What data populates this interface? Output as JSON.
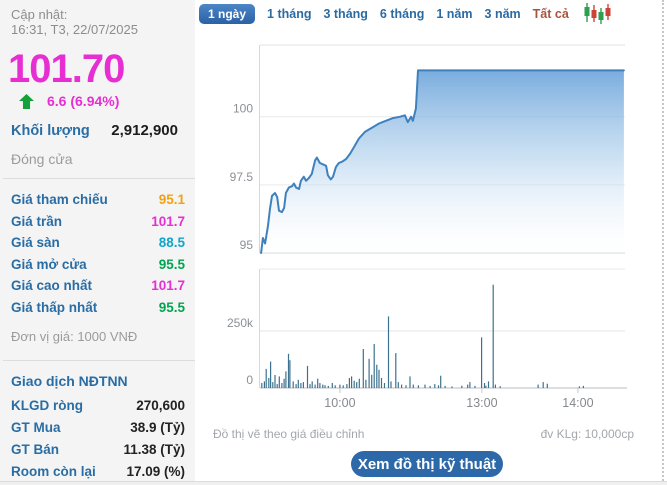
{
  "left_panel": {
    "updated_label": "Cập nhật:",
    "updated_time": "16:31, T3, 22/07/2025",
    "price": "101.70",
    "price_color": "#e62ed3",
    "change": "6.6 (6.94%)",
    "change_direction": "up",
    "volume_label": "Khối lượng",
    "volume_value": "2,912,900",
    "session_status": "Đóng cửa",
    "rows": [
      {
        "label": "Giá tham chiếu",
        "value": "95.1",
        "color": "#f2a10f"
      },
      {
        "label": "Giá trần",
        "value": "101.7",
        "color": "#e62ed3"
      },
      {
        "label": "Giá sàn",
        "value": "88.5",
        "color": "#12a5c9"
      },
      {
        "label": "Giá mở cửa",
        "value": "95.5",
        "color": "#00a550"
      },
      {
        "label": "Giá cao nhất",
        "value": "101.7",
        "color": "#e62ed3"
      },
      {
        "label": "Giá thấp nhất",
        "value": "95.5",
        "color": "#00a550"
      }
    ],
    "unit_note": "Đơn vị giá: 1000 VNĐ",
    "foreign": {
      "title": "Giao dịch NĐTNN",
      "rows": [
        {
          "label": "KLGD ròng",
          "value": "270,600"
        },
        {
          "label": "GT Mua",
          "value": "38.9 (Tỷ)"
        },
        {
          "label": "GT Bán",
          "value": "11.38 (Tỷ)"
        },
        {
          "label": "Room còn lại",
          "value": "17.09 (%)"
        }
      ]
    }
  },
  "tabs": [
    {
      "label": "1 ngày",
      "active": true
    },
    {
      "label": "1 tháng",
      "active": false
    },
    {
      "label": "3 tháng",
      "active": false
    },
    {
      "label": "6 tháng",
      "active": false
    },
    {
      "label": "1 năm",
      "active": false
    },
    {
      "label": "3 năm",
      "active": false
    },
    {
      "label": "Tất cả",
      "active": false,
      "color": "#a8533e"
    }
  ],
  "icons": {
    "trend": "up-arrow-icon",
    "chart_style_switcher": "candlestick-icon"
  },
  "footer": {
    "note": "Đồ thị vẽ theo giá điều chỉnh",
    "volume_unit": "đv KLg: 10,000cp",
    "button_label": "Xem đồ thị kỹ thuật"
  },
  "colors": {
    "accent_blue": "#2a6da4",
    "up_green": "#14a03a",
    "ceiling_magenta": "#e62ed3",
    "floor_teal": "#12a5c9",
    "reference_orange": "#f2a10f",
    "button_blue": "#2d68a8"
  },
  "chart_data": [
    {
      "type": "area",
      "series_name": "price",
      "ylabel_unit": "1000 VND",
      "ylim": [
        95,
        102.63
      ],
      "yticks": [
        95,
        97.5,
        100
      ],
      "x_ticks": [
        {
          "pos": 0.219,
          "label": "10:00"
        },
        {
          "pos": 0.608,
          "label": "13:00"
        },
        {
          "pos": 0.871,
          "label": "14:00"
        }
      ],
      "line_color": "#3f81bd",
      "fill_top_color": "#6fa6db",
      "points": [
        [
          0.003,
          95.0
        ],
        [
          0.008,
          95.55
        ],
        [
          0.014,
          95.35
        ],
        [
          0.022,
          96.0
        ],
        [
          0.027,
          96.6
        ],
        [
          0.033,
          97.1
        ],
        [
          0.041,
          97.2
        ],
        [
          0.047,
          97.05
        ],
        [
          0.052,
          96.55
        ],
        [
          0.06,
          96.5
        ],
        [
          0.066,
          96.65
        ],
        [
          0.071,
          97.2
        ],
        [
          0.079,
          97.4
        ],
        [
          0.088,
          97.45
        ],
        [
          0.093,
          97.55
        ],
        [
          0.099,
          97.4
        ],
        [
          0.107,
          97.35
        ],
        [
          0.112,
          97.65
        ],
        [
          0.12,
          97.8
        ],
        [
          0.126,
          97.65
        ],
        [
          0.134,
          97.75
        ],
        [
          0.142,
          97.9
        ],
        [
          0.151,
          98.4
        ],
        [
          0.156,
          98.5
        ],
        [
          0.164,
          98.3
        ],
        [
          0.173,
          98.25
        ],
        [
          0.181,
          98.2
        ],
        [
          0.186,
          97.85
        ],
        [
          0.194,
          97.7
        ],
        [
          0.2,
          97.8
        ],
        [
          0.208,
          98.15
        ],
        [
          0.216,
          98.3
        ],
        [
          0.225,
          98.35
        ],
        [
          0.236,
          98.45
        ],
        [
          0.247,
          98.65
        ],
        [
          0.258,
          98.9
        ],
        [
          0.271,
          99.2
        ],
        [
          0.288,
          99.45
        ],
        [
          0.307,
          99.6
        ],
        [
          0.326,
          99.75
        ],
        [
          0.345,
          99.85
        ],
        [
          0.364,
          99.95
        ],
        [
          0.384,
          100.0
        ],
        [
          0.397,
          100.05
        ],
        [
          0.405,
          99.8
        ],
        [
          0.414,
          100.0
        ],
        [
          0.419,
          99.85
        ],
        [
          0.427,
          100.3
        ],
        [
          0.433,
          101.7
        ],
        [
          0.997,
          101.7
        ]
      ]
    },
    {
      "type": "bar",
      "series_name": "volume",
      "ylim": [
        0,
        522000
      ],
      "yticks": [
        {
          "v": 0,
          "label": "0"
        },
        {
          "v": 250000,
          "label": "250k"
        }
      ],
      "bar_color": "#3c7290",
      "bars": [
        [
          0.005,
          22000
        ],
        [
          0.012,
          29000
        ],
        [
          0.017,
          84000
        ],
        [
          0.024,
          44000
        ],
        [
          0.029,
          116000
        ],
        [
          0.035,
          26000
        ],
        [
          0.041,
          57000
        ],
        [
          0.047,
          17000
        ],
        [
          0.053,
          51000
        ],
        [
          0.06,
          22000
        ],
        [
          0.066,
          41000
        ],
        [
          0.071,
          73000
        ],
        [
          0.078,
          150000
        ],
        [
          0.082,
          122000
        ],
        [
          0.091,
          29000
        ],
        [
          0.099,
          17000
        ],
        [
          0.105,
          36000
        ],
        [
          0.112,
          22000
        ],
        [
          0.119,
          26000
        ],
        [
          0.13,
          97000
        ],
        [
          0.137,
          17000
        ],
        [
          0.143,
          29000
        ],
        [
          0.151,
          15000
        ],
        [
          0.158,
          41000
        ],
        [
          0.164,
          22000
        ],
        [
          0.172,
          15000
        ],
        [
          0.178,
          12000
        ],
        [
          0.187,
          9000
        ],
        [
          0.198,
          22000
        ],
        [
          0.206,
          12000
        ],
        [
          0.219,
          15000
        ],
        [
          0.228,
          12000
        ],
        [
          0.238,
          17000
        ],
        [
          0.245,
          44000
        ],
        [
          0.251,
          51000
        ],
        [
          0.258,
          32000
        ],
        [
          0.265,
          26000
        ],
        [
          0.272,
          41000
        ],
        [
          0.283,
          171000
        ],
        [
          0.29,
          36000
        ],
        [
          0.299,
          128000
        ],
        [
          0.306,
          58000
        ],
        [
          0.313,
          193000
        ],
        [
          0.32,
          102000
        ],
        [
          0.326,
          80000
        ],
        [
          0.333,
          44000
        ],
        [
          0.341,
          22000
        ],
        [
          0.352,
          314000
        ],
        [
          0.359,
          29000
        ],
        [
          0.372,
          153000
        ],
        [
          0.379,
          26000
        ],
        [
          0.388,
          15000
        ],
        [
          0.4,
          12000
        ],
        [
          0.411,
          51000
        ],
        [
          0.42,
          15000
        ],
        [
          0.434,
          12000
        ],
        [
          0.452,
          15000
        ],
        [
          0.466,
          9000
        ],
        [
          0.479,
          17000
        ],
        [
          0.489,
          12000
        ],
        [
          0.495,
          54000
        ],
        [
          0.507,
          9000
        ],
        [
          0.526,
          7000
        ],
        [
          0.553,
          10000
        ],
        [
          0.569,
          15000
        ],
        [
          0.575,
          26000
        ],
        [
          0.589,
          9000
        ],
        [
          0.607,
          222000
        ],
        [
          0.615,
          22000
        ],
        [
          0.619,
          10000
        ],
        [
          0.626,
          29000
        ],
        [
          0.639,
          453000
        ],
        [
          0.645,
          15000
        ],
        [
          0.658,
          8000
        ],
        [
          0.762,
          15000
        ],
        [
          0.776,
          26000
        ],
        [
          0.787,
          19000
        ],
        [
          0.875,
          7000
        ],
        [
          0.886,
          9000
        ]
      ]
    }
  ]
}
